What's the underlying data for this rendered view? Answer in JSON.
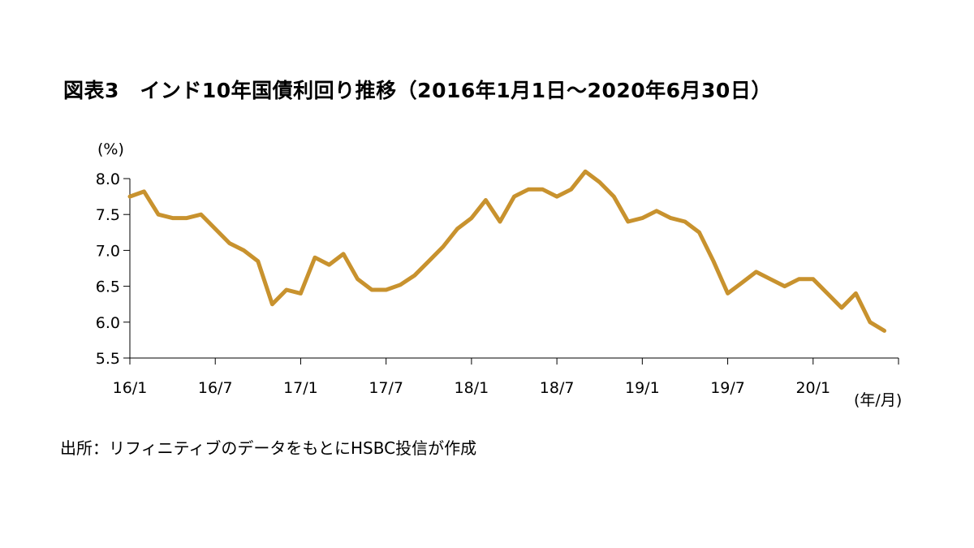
{
  "chart_data": {
    "type": "line",
    "title": "図表3　インド10年国債利回り推移（2016年1月1日～2020年6月30日）",
    "ylabel": "(%)",
    "xlabel": "(年/月)",
    "source": "出所：リフィニティブのデータをもとにHSBC投信が作成",
    "ylim": [
      5.5,
      8.0
    ],
    "yticks": [
      "8.0",
      "7.5",
      "7.0",
      "6.5",
      "6.0",
      "5.5"
    ],
    "xticks": [
      "16/1",
      "16/7",
      "17/1",
      "17/7",
      "18/1",
      "18/7",
      "19/1",
      "19/7",
      "20/1"
    ],
    "xlim": [
      "2016-01",
      "2020-07"
    ],
    "color": "#C8922E",
    "grid": false,
    "series": [
      {
        "x": [
          "2016-01",
          "2016-02",
          "2016-03",
          "2016-04",
          "2016-05",
          "2016-06",
          "2016-07",
          "2016-08",
          "2016-09",
          "2016-10",
          "2016-11",
          "2016-12",
          "2017-01",
          "2017-02",
          "2017-03",
          "2017-04",
          "2017-05",
          "2017-06",
          "2017-07",
          "2017-08",
          "2017-09",
          "2017-10",
          "2017-11",
          "2017-12",
          "2018-01",
          "2018-02",
          "2018-03",
          "2018-04",
          "2018-05",
          "2018-06",
          "2018-07",
          "2018-08",
          "2018-09",
          "2018-10",
          "2018-11",
          "2018-12",
          "2019-01",
          "2019-02",
          "2019-03",
          "2019-04",
          "2019-05",
          "2019-06",
          "2019-07",
          "2019-08",
          "2019-09",
          "2019-10",
          "2019-11",
          "2019-12",
          "2020-01",
          "2020-02",
          "2020-03",
          "2020-04",
          "2020-05",
          "2020-06"
        ],
        "y": [
          7.75,
          7.82,
          7.5,
          7.45,
          7.45,
          7.5,
          7.3,
          7.1,
          7.0,
          6.85,
          6.25,
          6.45,
          6.4,
          6.9,
          6.8,
          6.95,
          6.6,
          6.45,
          6.45,
          6.52,
          6.65,
          6.85,
          7.05,
          7.3,
          7.45,
          7.7,
          7.4,
          7.75,
          7.85,
          7.85,
          7.75,
          7.85,
          8.1,
          7.95,
          7.75,
          7.4,
          7.45,
          7.55,
          7.45,
          7.4,
          7.25,
          6.85,
          6.4,
          6.55,
          6.7,
          6.6,
          6.5,
          6.6,
          6.6,
          6.4,
          6.2,
          6.4,
          6.0,
          5.88
        ]
      }
    ]
  }
}
